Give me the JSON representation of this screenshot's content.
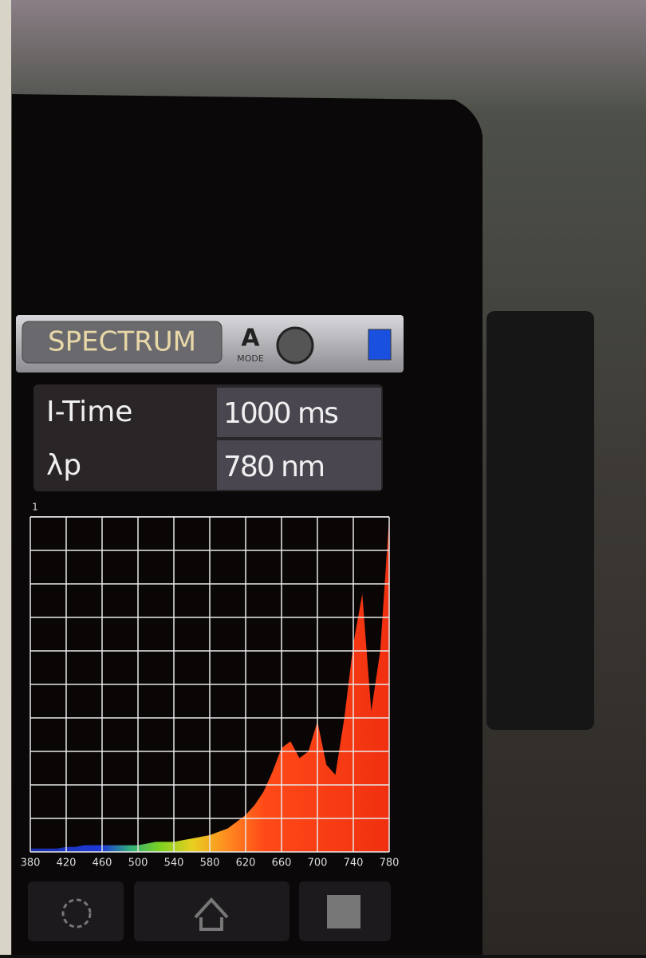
{
  "screen": {
    "mode_button": "SPECTRUM",
    "mode_letter": "A",
    "mode_label": "MODE",
    "rows": [
      [
        "I-Time",
        "1000 ms"
      ],
      [
        "λp",
        "780 nm"
      ]
    ]
  },
  "chart_data": {
    "type": "area",
    "x": [
      380,
      390,
      400,
      410,
      420,
      430,
      440,
      450,
      460,
      470,
      480,
      490,
      500,
      510,
      520,
      530,
      540,
      550,
      560,
      570,
      580,
      590,
      600,
      610,
      620,
      630,
      640,
      650,
      660,
      670,
      680,
      690,
      700,
      710,
      720,
      730,
      740,
      750,
      760,
      770,
      780
    ],
    "values": [
      0.01,
      0.01,
      0.01,
      0.01,
      0.015,
      0.015,
      0.02,
      0.02,
      0.02,
      0.02,
      0.02,
      0.02,
      0.02,
      0.025,
      0.03,
      0.03,
      0.03,
      0.035,
      0.04,
      0.045,
      0.05,
      0.06,
      0.07,
      0.09,
      0.11,
      0.14,
      0.18,
      0.24,
      0.31,
      0.33,
      0.28,
      0.3,
      0.39,
      0.26,
      0.23,
      0.4,
      0.62,
      0.77,
      0.42,
      0.6,
      1.0
    ],
    "xlim": [
      380,
      780
    ],
    "xticks": [
      380,
      420,
      460,
      500,
      540,
      580,
      620,
      660,
      700,
      740,
      780
    ],
    "ylim": [
      0,
      1
    ],
    "yticks": [
      1
    ],
    "grid": true
  }
}
